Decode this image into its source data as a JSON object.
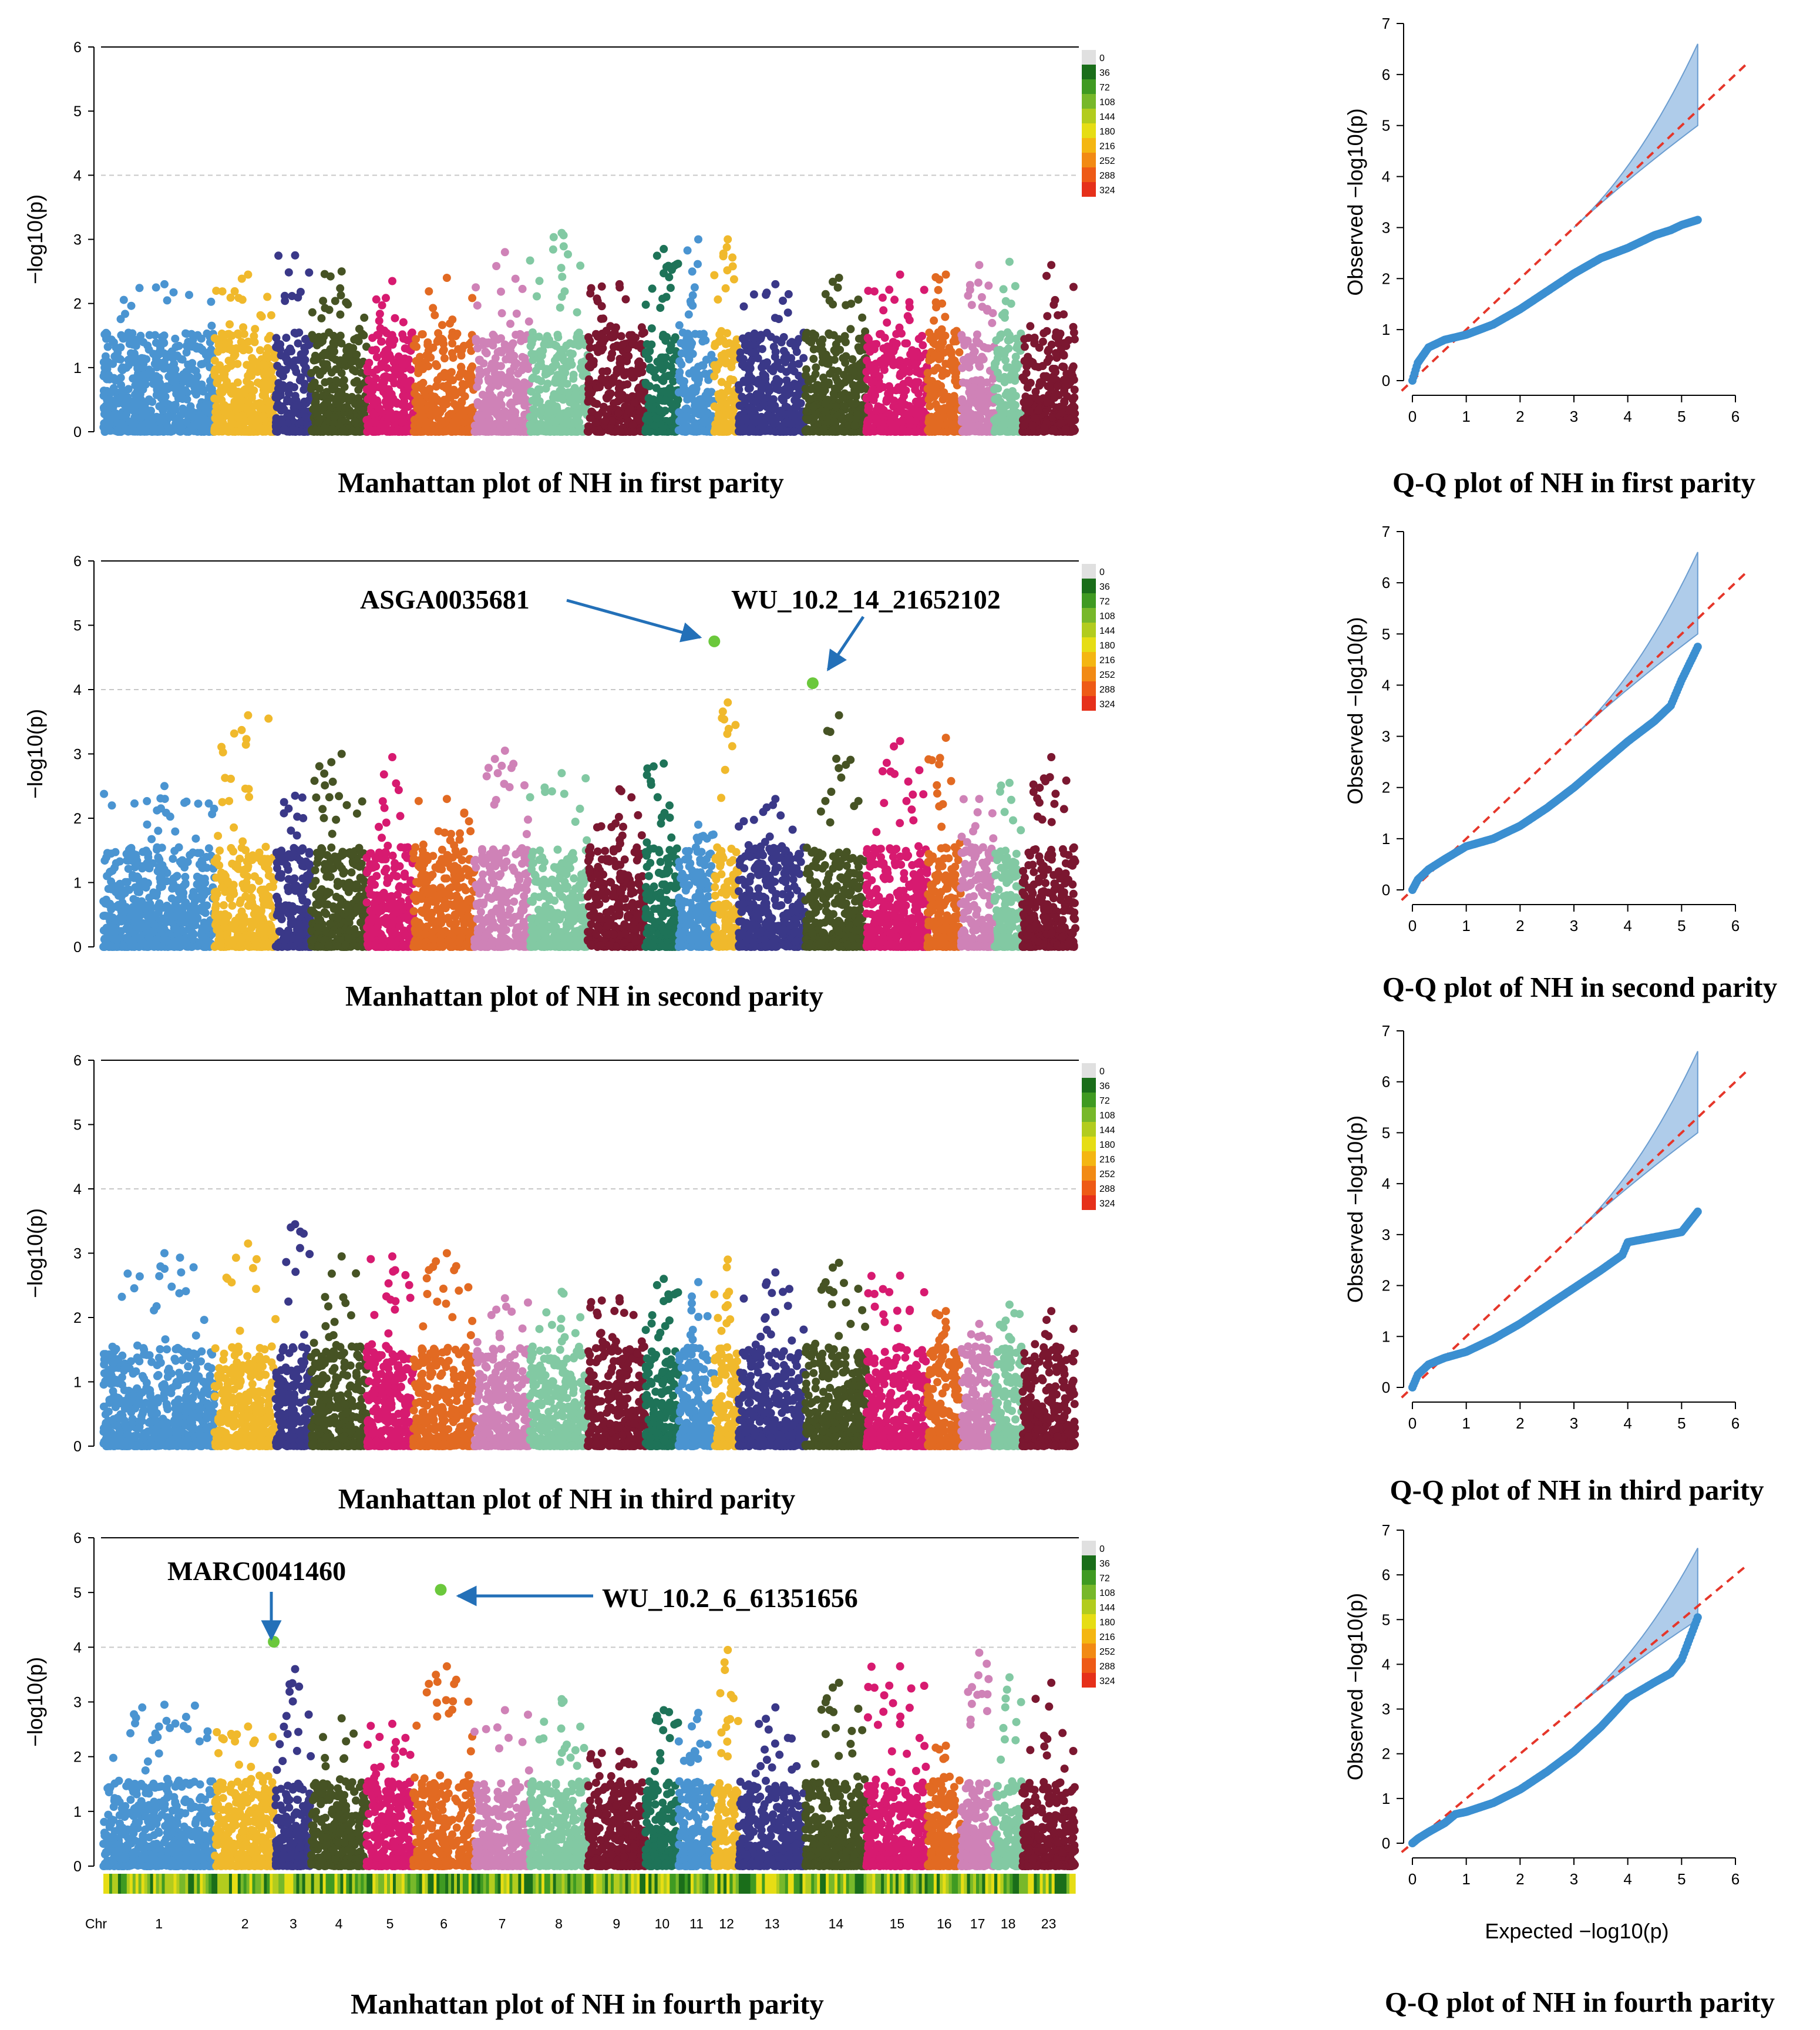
{
  "chart_data": [
    {
      "type": "scatter",
      "name": "manhattan-first",
      "title": "Manhattan plot of NH in first parity",
      "ylabel": "−log10(p)",
      "ylim": [
        0,
        6
      ],
      "yticks": [
        "0",
        "1",
        "2",
        "3",
        "4",
        "5",
        "6"
      ],
      "threshold": 4,
      "chr_peaks": [
        2.3,
        2.45,
        2.75,
        2.5,
        2.35,
        2.4,
        2.8,
        3.1,
        2.3,
        2.85,
        3.0,
        3.0,
        2.3,
        2.4,
        2.45,
        2.45,
        2.6,
        2.65,
        2.6
      ],
      "highlights": [],
      "annotations": []
    },
    {
      "type": "scatter",
      "name": "manhattan-second",
      "title": "Manhattan plot of NH in second parity",
      "ylabel": "−log10(p)",
      "ylim": [
        0,
        6
      ],
      "yticks": [
        "0",
        "1",
        "2",
        "3",
        "4",
        "5",
        "6"
      ],
      "threshold": 4,
      "chr_peaks": [
        2.5,
        3.6,
        2.35,
        3.0,
        2.95,
        2.3,
        3.05,
        2.7,
        2.45,
        2.85,
        1.9,
        3.8,
        2.3,
        3.6,
        3.2,
        3.25,
        2.3,
        2.55,
        2.95
      ],
      "highlights": [
        {
          "label": "ASGA0035681",
          "chr": 12,
          "pos": 0.0,
          "value": 4.75
        },
        {
          "label": "WU_10.2_14_21652102",
          "chr": 14,
          "pos": 0.12,
          "value": 4.1
        }
      ],
      "annotations": [
        "ASGA0035681",
        "WU_10.2_14_21652102"
      ]
    },
    {
      "type": "scatter",
      "name": "manhattan-third",
      "title": "Manhattan plot of NH in third parity",
      "ylabel": "−log10(p)",
      "ylim": [
        0,
        6
      ],
      "yticks": [
        "0",
        "1",
        "2",
        "3",
        "4",
        "5",
        "6"
      ],
      "threshold": 4,
      "chr_peaks": [
        3.0,
        3.15,
        3.45,
        2.95,
        2.95,
        3.0,
        2.3,
        2.4,
        2.3,
        2.6,
        2.55,
        2.9,
        2.7,
        2.85,
        2.65,
        2.1,
        1.9,
        2.2,
        2.1
      ],
      "highlights": [],
      "annotations": []
    },
    {
      "type": "scatter",
      "name": "manhattan-fourth",
      "title": "Manhattan plot of NH in fourth parity",
      "ylabel": "−log10(p)",
      "ylim": [
        0,
        6
      ],
      "yticks": [
        "0",
        "1",
        "2",
        "3",
        "4",
        "5",
        "6"
      ],
      "threshold": 4,
      "chr_peaks": [
        2.95,
        2.55,
        3.6,
        2.7,
        2.6,
        3.65,
        2.85,
        3.05,
        2.1,
        2.85,
        2.8,
        3.95,
        2.9,
        3.35,
        3.65,
        2.2,
        3.9,
        3.45,
        3.35
      ],
      "highlights": [
        {
          "label": "MARC0041460",
          "chr": 2,
          "pos": 0.97,
          "value": 4.1
        },
        {
          "label": "WU_10.2_6_61351656",
          "chr": 6,
          "pos": 0.45,
          "value": 5.05
        }
      ],
      "annotations": [
        "MARC0041460",
        "WU_10.2_6_61351656"
      ],
      "chromosomes": [
        "1",
        "2",
        "3",
        "4",
        "5",
        "6",
        "7",
        "8",
        "9",
        "10",
        "11",
        "12",
        "13",
        "14",
        "15",
        "16",
        "17",
        "18",
        "23"
      ],
      "chr_axis_label": "Chr"
    },
    {
      "type": "scatter",
      "name": "qq-first",
      "title": "Q-Q plot of NH in first parity",
      "xlabel": "",
      "ylabel": "Observed  −log10(p)",
      "xlim": [
        0,
        6
      ],
      "ylim": [
        0,
        7
      ],
      "xticks": [
        "0",
        "1",
        "2",
        "3",
        "4",
        "5",
        "6"
      ],
      "yticks": [
        "0",
        "1",
        "2",
        "3",
        "4",
        "5",
        "6",
        "7"
      ],
      "curve": [
        [
          0,
          0
        ],
        [
          0.1,
          0.35
        ],
        [
          0.3,
          0.65
        ],
        [
          0.6,
          0.8
        ],
        [
          1.0,
          0.9
        ],
        [
          1.5,
          1.1
        ],
        [
          2.0,
          1.4
        ],
        [
          2.5,
          1.75
        ],
        [
          3.0,
          2.1
        ],
        [
          3.5,
          2.4
        ],
        [
          4.0,
          2.6
        ],
        [
          4.5,
          2.85
        ],
        [
          4.8,
          2.95
        ],
        [
          5.0,
          3.05
        ],
        [
          5.3,
          3.15
        ]
      ],
      "max_expected": 5.3
    },
    {
      "type": "scatter",
      "name": "qq-second",
      "title": "Q-Q plot of NH in second parity",
      "xlabel": "",
      "ylabel": "Observed  −log10(p)",
      "xlim": [
        0,
        6
      ],
      "ylim": [
        0,
        7
      ],
      "xticks": [
        "0",
        "1",
        "2",
        "3",
        "4",
        "5",
        "6"
      ],
      "yticks": [
        "0",
        "1",
        "2",
        "3",
        "4",
        "5",
        "6",
        "7"
      ],
      "curve": [
        [
          0,
          0
        ],
        [
          0.1,
          0.2
        ],
        [
          0.3,
          0.4
        ],
        [
          0.6,
          0.6
        ],
        [
          1.0,
          0.85
        ],
        [
          1.5,
          1.0
        ],
        [
          2.0,
          1.25
        ],
        [
          2.5,
          1.6
        ],
        [
          3.0,
          2.0
        ],
        [
          3.5,
          2.45
        ],
        [
          4.0,
          2.9
        ],
        [
          4.5,
          3.3
        ],
        [
          4.8,
          3.6
        ],
        [
          5.0,
          4.1
        ],
        [
          5.3,
          4.75
        ]
      ],
      "max_expected": 5.3
    },
    {
      "type": "scatter",
      "name": "qq-third",
      "title": "Q-Q plot of NH in third parity",
      "xlabel": "",
      "ylabel": "Observed  −log10(p)",
      "xlim": [
        0,
        6
      ],
      "ylim": [
        0,
        7
      ],
      "xticks": [
        "0",
        "1",
        "2",
        "3",
        "4",
        "5",
        "6"
      ],
      "yticks": [
        "0",
        "1",
        "2",
        "3",
        "4",
        "5",
        "6",
        "7"
      ],
      "curve": [
        [
          0,
          0
        ],
        [
          0.1,
          0.25
        ],
        [
          0.3,
          0.45
        ],
        [
          0.6,
          0.58
        ],
        [
          1.0,
          0.7
        ],
        [
          1.5,
          0.95
        ],
        [
          2.0,
          1.25
        ],
        [
          2.5,
          1.6
        ],
        [
          3.0,
          1.95
        ],
        [
          3.5,
          2.3
        ],
        [
          3.9,
          2.6
        ],
        [
          4.0,
          2.85
        ],
        [
          4.5,
          2.95
        ],
        [
          5.0,
          3.05
        ],
        [
          5.3,
          3.45
        ]
      ],
      "max_expected": 5.3
    },
    {
      "type": "scatter",
      "name": "qq-fourth",
      "title": "Q-Q plot of NH in fourth parity",
      "xlabel": "Expected  −log10(p)",
      "ylabel": "Observed  −log10(p)",
      "xlim": [
        0,
        6
      ],
      "ylim": [
        0,
        7
      ],
      "xticks": [
        "0",
        "1",
        "2",
        "3",
        "4",
        "5",
        "6"
      ],
      "yticks": [
        "0",
        "1",
        "2",
        "3",
        "4",
        "5",
        "6",
        "7"
      ],
      "curve": [
        [
          0,
          0
        ],
        [
          0.1,
          0.1
        ],
        [
          0.3,
          0.25
        ],
        [
          0.6,
          0.45
        ],
        [
          0.8,
          0.65
        ],
        [
          1.0,
          0.7
        ],
        [
          1.5,
          0.9
        ],
        [
          2.0,
          1.2
        ],
        [
          2.5,
          1.6
        ],
        [
          3.0,
          2.05
        ],
        [
          3.5,
          2.6
        ],
        [
          4.0,
          3.25
        ],
        [
          4.5,
          3.6
        ],
        [
          4.8,
          3.8
        ],
        [
          5.0,
          4.1
        ],
        [
          5.3,
          5.05
        ]
      ],
      "max_expected": 5.3
    }
  ],
  "legend": {
    "labels": [
      "0",
      "36",
      "72",
      "108",
      "144",
      "180",
      "216",
      "252",
      "288",
      "324"
    ],
    "colors": [
      "#e0e0e0",
      "#1a6e1a",
      "#3f9a22",
      "#77b82a",
      "#b2cc1e",
      "#e6dd14",
      "#f4b612",
      "#f28a14",
      "#ee5a16",
      "#e6301a"
    ]
  },
  "palette": [
    "#4a94d1",
    "#f0b92c",
    "#3a3888",
    "#465324",
    "#d71a70",
    "#e26a22",
    "#cf82b7",
    "#82c9a3",
    "#7b1730",
    "#1e7358"
  ],
  "styles": {
    "threshold_color": "#c8c8c8",
    "highlight_color": "#6bc83c",
    "arrow_color": "#2370b8",
    "qq_point_color": "#3b8fd1",
    "qq_line_color": "#e5362a",
    "qq_band_color": "#a7c7e8",
    "qq_band_edge": "#5b93cc"
  }
}
